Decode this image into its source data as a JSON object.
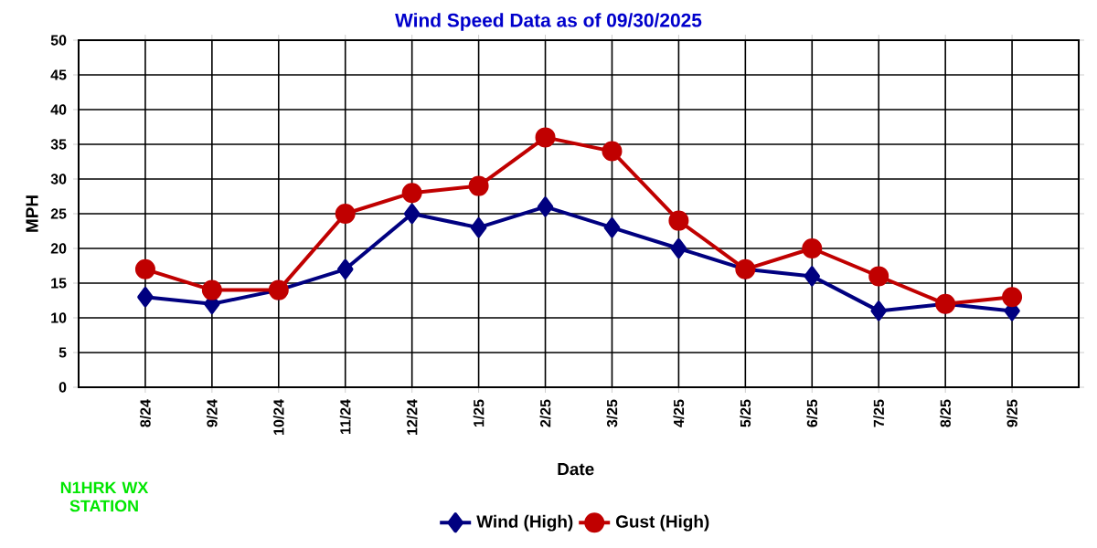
{
  "chart_data": {
    "type": "line",
    "title": "Wind Speed Data as of 09/30/2025",
    "xlabel": "Date",
    "ylabel": "MPH",
    "categories": [
      "8/24",
      "9/24",
      "10/24",
      "11/24",
      "12/24",
      "1/25",
      "2/25",
      "3/25",
      "4/25",
      "5/25",
      "6/25",
      "7/25",
      "8/25",
      "9/25"
    ],
    "series": [
      {
        "name": "Wind (High)",
        "color": "#000080",
        "marker": "diamond",
        "values": [
          13,
          12,
          14,
          17,
          25,
          23,
          26,
          23,
          20,
          17,
          16,
          11,
          12,
          11
        ]
      },
      {
        "name": "Gust (High)",
        "color": "#c00000",
        "marker": "circle",
        "values": [
          17,
          14,
          14,
          25,
          28,
          29,
          36,
          34,
          24,
          17,
          20,
          16,
          12,
          13
        ]
      }
    ],
    "ylim": [
      0,
      50
    ],
    "yticks": [
      0,
      5,
      10,
      15,
      20,
      25,
      30,
      35,
      40,
      45,
      50
    ],
    "grid": true,
    "legend": "bottom",
    "line_style": "solid",
    "annotations": [
      "N1HRK WX STATION"
    ]
  }
}
